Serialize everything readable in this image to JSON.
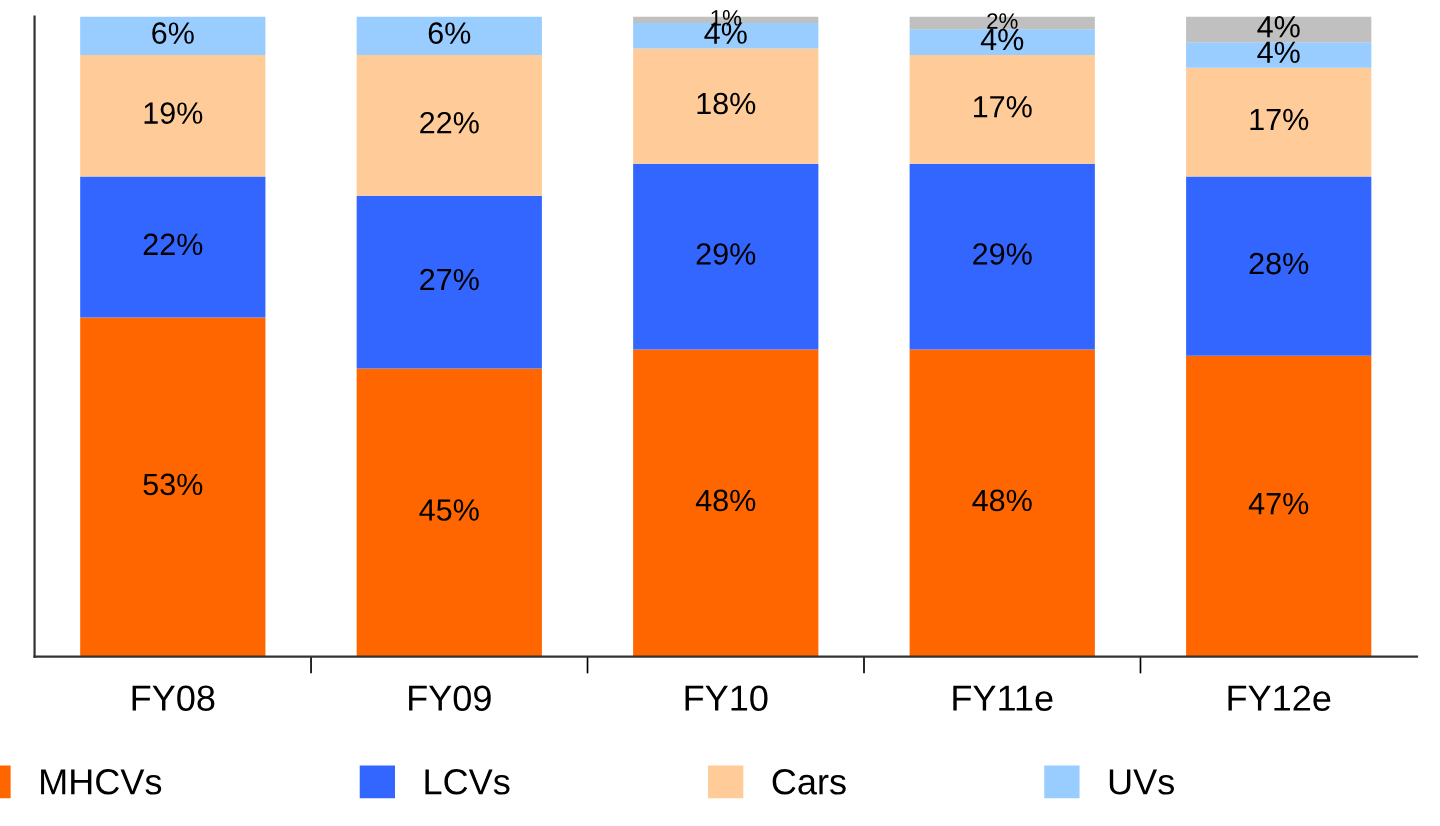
{
  "chart_data": {
    "type": "bar",
    "stacked": true,
    "legend": "bottom",
    "grid": false,
    "tick_labels": "x",
    "categories": [
      "FY08",
      "FY09",
      "FY10",
      "FY11e",
      "FY12e"
    ],
    "series": [
      {
        "name": "MHCVs",
        "color": "#ff6600",
        "values": [
          53,
          45,
          48,
          48,
          47
        ],
        "value_labels": [
          "53%",
          "45%",
          "48%",
          "48%",
          "47%"
        ]
      },
      {
        "name": "LCVs",
        "color": "#3366ff",
        "values": [
          22,
          27,
          29,
          29,
          28
        ],
        "value_labels": [
          "22%",
          "27%",
          "29%",
          "29%",
          "28%"
        ]
      },
      {
        "name": "Cars",
        "color": "#ffcc99",
        "values": [
          19,
          22,
          18,
          17,
          17
        ],
        "value_labels": [
          "19%",
          "22%",
          "18%",
          "17%",
          "17%"
        ]
      },
      {
        "name": "UVs",
        "color": "#99ccff",
        "values": [
          6,
          6,
          4,
          4,
          4
        ],
        "value_labels": [
          "6%",
          "6%",
          "4%",
          "4%",
          "4%"
        ]
      },
      {
        "color": "#c0c0c0",
        "values": [
          null,
          null,
          1,
          2,
          4
        ],
        "value_labels": [
          null,
          null,
          "1%",
          "2%",
          "4%"
        ]
      }
    ]
  }
}
